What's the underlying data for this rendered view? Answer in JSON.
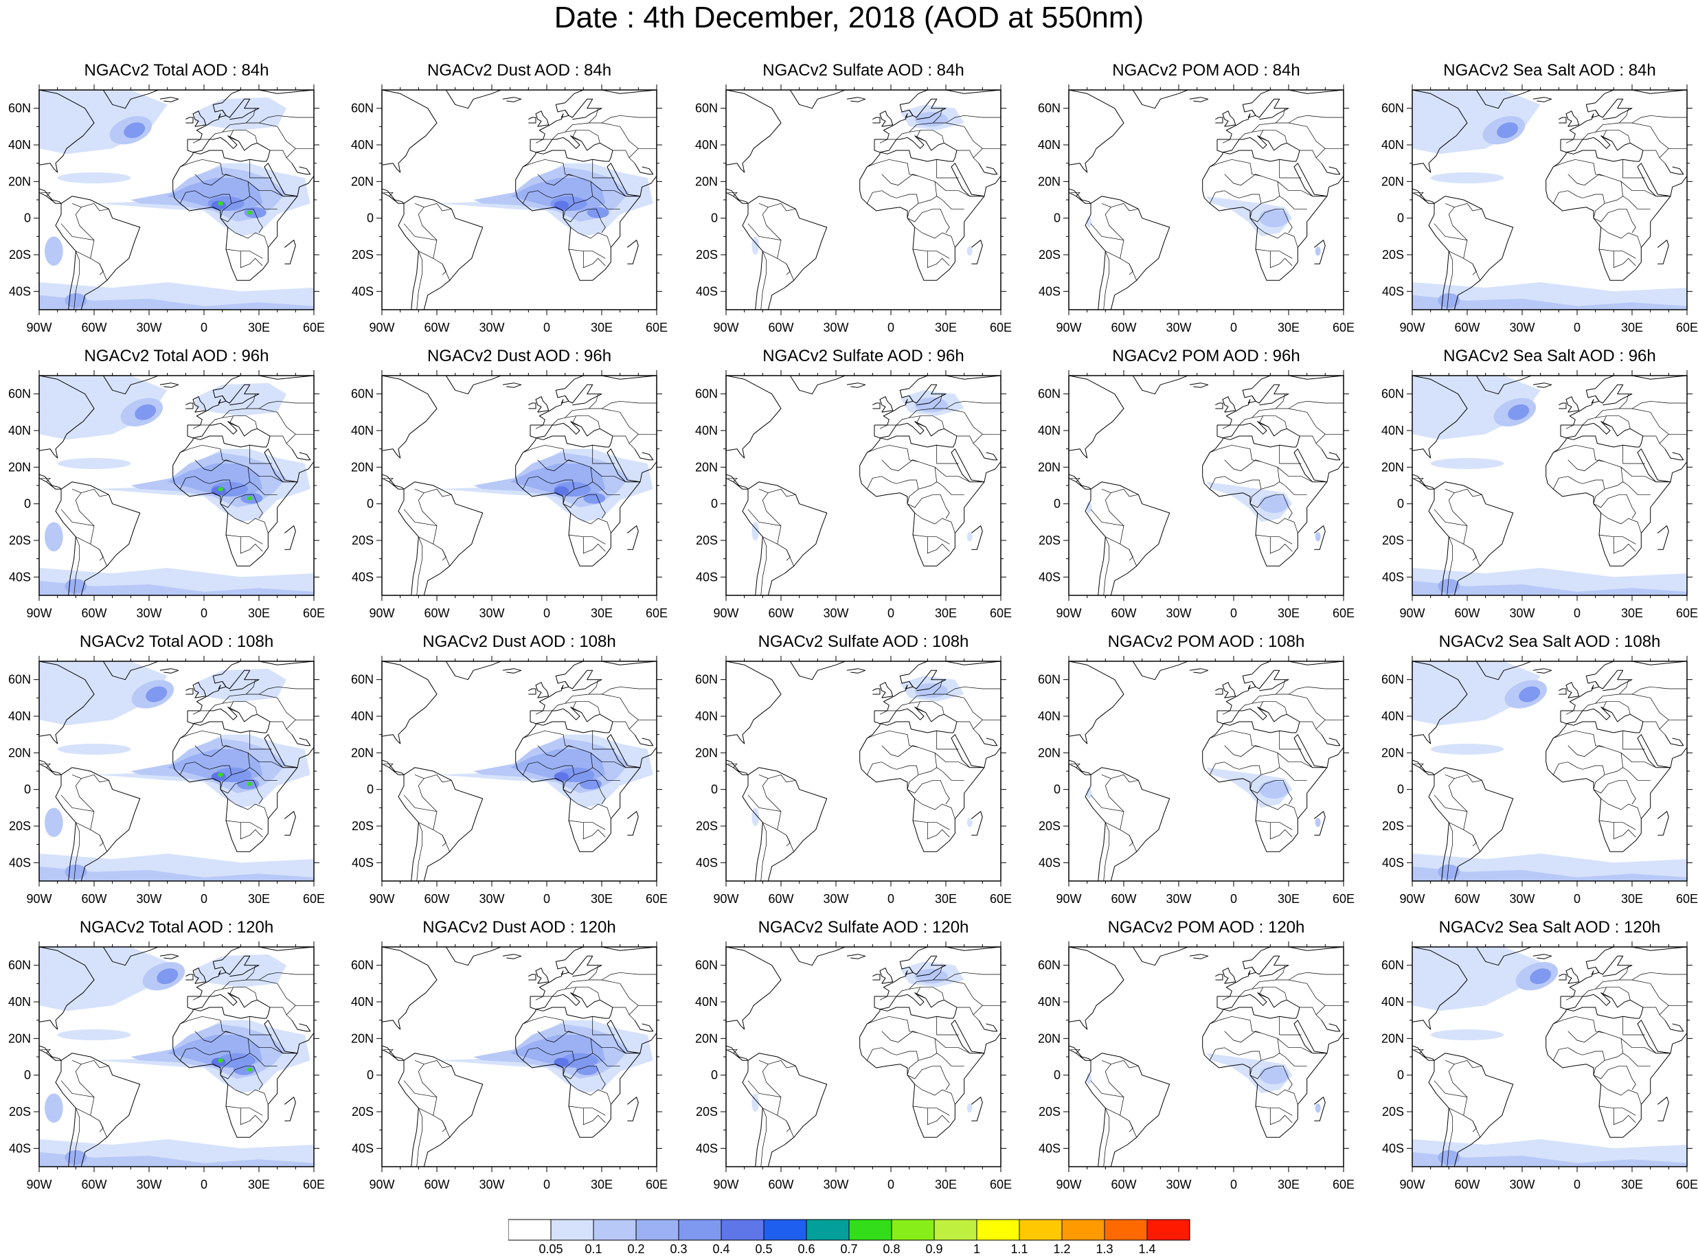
{
  "title": "Date : 4th December, 2018 (AOD at 550nm)",
  "lat_ticks": [
    "60N",
    "40N",
    "20N",
    "0",
    "20S",
    "40S"
  ],
  "lon_ticks": [
    "90W",
    "60W",
    "30W",
    "0",
    "30E",
    "60E"
  ],
  "map_extent": {
    "lon": [
      -90,
      60
    ],
    "lat": [
      -50,
      70
    ]
  },
  "rows": [
    {
      "hour": "84h",
      "panels": [
        {
          "title": "NGACv2 Total AOD : 84h",
          "species": "total"
        },
        {
          "title": "NGACv2 Dust AOD : 84h",
          "species": "dust"
        },
        {
          "title": "NGACv2 Sulfate AOD : 84h",
          "species": "sulfate"
        },
        {
          "title": "NGACv2 POM AOD : 84h",
          "species": "pom"
        },
        {
          "title": "NGACv2 Sea Salt AOD : 84h",
          "species": "seasalt"
        }
      ]
    },
    {
      "hour": "96h",
      "panels": [
        {
          "title": "NGACv2 Total AOD : 96h",
          "species": "total"
        },
        {
          "title": "NGACv2 Dust AOD : 96h",
          "species": "dust"
        },
        {
          "title": "NGACv2 Sulfate AOD : 96h",
          "species": "sulfate"
        },
        {
          "title": "NGACv2 POM AOD : 96h",
          "species": "pom"
        },
        {
          "title": "NGACv2 Sea Salt AOD : 96h",
          "species": "seasalt"
        }
      ]
    },
    {
      "hour": "108h",
      "panels": [
        {
          "title": "NGACv2 Total AOD : 108h",
          "species": "total"
        },
        {
          "title": "NGACv2 Dust AOD : 108h",
          "species": "dust"
        },
        {
          "title": "NGACv2 Sulfate AOD : 108h",
          "species": "sulfate"
        },
        {
          "title": "NGACv2 POM AOD : 108h",
          "species": "pom"
        },
        {
          "title": "NGACv2 Sea Salt AOD : 108h",
          "species": "seasalt"
        }
      ]
    },
    {
      "hour": "120h",
      "panels": [
        {
          "title": "NGACv2 Total AOD : 120h",
          "species": "total"
        },
        {
          "title": "NGACv2 Dust AOD : 120h",
          "species": "dust"
        },
        {
          "title": "NGACv2 Sulfate AOD : 120h",
          "species": "sulfate"
        },
        {
          "title": "NGACv2 POM AOD : 120h",
          "species": "pom"
        },
        {
          "title": "NGACv2 Sea Salt  AOD : 120h",
          "species": "seasalt"
        }
      ]
    }
  ],
  "colorbar": {
    "labels": [
      "0.05",
      "0.1",
      "0.2",
      "0.3",
      "0.4",
      "0.5",
      "0.6",
      "0.7",
      "0.8",
      "0.9",
      "1",
      "1.1",
      "1.2",
      "1.3",
      "1.4"
    ],
    "colors": [
      "#ffffff",
      "#d6e2fb",
      "#b8c9f8",
      "#9bb1f4",
      "#7f98f0",
      "#5f76e9",
      "#1f5ff0",
      "#03a09b",
      "#33dd1a",
      "#88ee1a",
      "#bff040",
      "#ffff00",
      "#ffc800",
      "#ff9a00",
      "#ff6a00",
      "#ff1a00"
    ]
  },
  "plume_colors": {
    "light": "#d6e2fb",
    "mid": "#b8c9f8",
    "medium": "#9bb1f4",
    "strong": "#7f98f0",
    "heavy": "#5f76e9",
    "peak": "#33dd1a"
  }
}
